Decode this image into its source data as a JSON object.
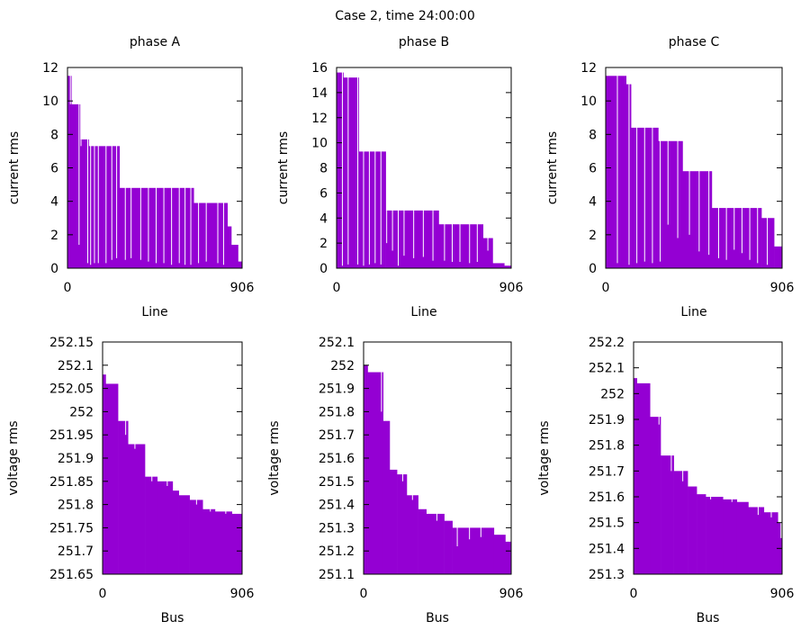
{
  "figure": {
    "title": "Case 2, time 24:00:00"
  },
  "colors": {
    "bar": "#9400d3",
    "frame": "#000000",
    "background": "#ffffff"
  },
  "chart_data": [
    {
      "type": "bar",
      "title": "phase A",
      "xlabel": "Line",
      "ylabel": "current rms",
      "xlim": [
        0,
        906
      ],
      "xticks": [
        "0",
        "906"
      ],
      "ylim": [
        0,
        12
      ],
      "yticks": [
        "0",
        "2",
        "4",
        "6",
        "8",
        "10",
        "12"
      ],
      "steps": [
        [
          0,
          11.5
        ],
        [
          20,
          9.8
        ],
        [
          65,
          7.7
        ],
        [
          110,
          7.3
        ],
        [
          270,
          4.8
        ],
        [
          655,
          3.9
        ],
        [
          830,
          2.5
        ],
        [
          850,
          1.4
        ],
        [
          885,
          0.4
        ]
      ],
      "dips": [
        [
          15,
          9.8
        ],
        [
          60,
          1.4
        ],
        [
          70,
          7.3
        ],
        [
          105,
          0.3
        ],
        [
          120,
          0.2
        ],
        [
          140,
          0.3
        ],
        [
          160,
          0.3
        ],
        [
          200,
          0.3
        ],
        [
          230,
          0.5
        ],
        [
          255,
          0.6
        ],
        [
          300,
          0.5
        ],
        [
          330,
          0.6
        ],
        [
          380,
          0.5
        ],
        [
          420,
          0.4
        ],
        [
          460,
          0.3
        ],
        [
          500,
          0.3
        ],
        [
          540,
          0.2
        ],
        [
          580,
          0.3
        ],
        [
          610,
          0.2
        ],
        [
          640,
          0.2
        ],
        [
          680,
          0.3
        ],
        [
          720,
          0.4
        ],
        [
          780,
          0.3
        ],
        [
          810,
          0.2
        ]
      ],
      "grid": false
    },
    {
      "type": "bar",
      "title": "phase B",
      "xlabel": "Line",
      "ylabel": "current rms",
      "xlim": [
        0,
        906
      ],
      "xticks": [
        "0",
        "906"
      ],
      "ylim": [
        0,
        16
      ],
      "yticks": [
        "0",
        "2",
        "4",
        "6",
        "8",
        "10",
        "12",
        "14",
        "16"
      ],
      "steps": [
        [
          0,
          15.6
        ],
        [
          35,
          15.2
        ],
        [
          115,
          9.3
        ],
        [
          255,
          4.6
        ],
        [
          530,
          3.5
        ],
        [
          760,
          2.4
        ],
        [
          810,
          0.4
        ],
        [
          870,
          0.2
        ]
      ],
      "dips": [
        [
          30,
          0.2
        ],
        [
          60,
          0.3
        ],
        [
          110,
          0.3
        ],
        [
          140,
          0.2
        ],
        [
          170,
          0.3
        ],
        [
          200,
          0.4
        ],
        [
          230,
          0.3
        ],
        [
          260,
          2.0
        ],
        [
          290,
          1.4
        ],
        [
          320,
          0.2
        ],
        [
          350,
          1.0
        ],
        [
          400,
          0.8
        ],
        [
          450,
          0.9
        ],
        [
          500,
          0.6
        ],
        [
          560,
          0.6
        ],
        [
          600,
          0.5
        ],
        [
          640,
          0.5
        ],
        [
          690,
          0.4
        ],
        [
          730,
          0.5
        ],
        [
          785,
          1.4
        ]
      ],
      "grid": false
    },
    {
      "type": "bar",
      "title": "phase C",
      "xlabel": "Line",
      "ylabel": "current rms",
      "xlim": [
        0,
        906
      ],
      "xticks": [
        "0",
        "906"
      ],
      "ylim": [
        0,
        12
      ],
      "yticks": [
        "0",
        "2",
        "4",
        "6",
        "8",
        "10",
        "12"
      ],
      "steps": [
        [
          0,
          11.5
        ],
        [
          105,
          11.0
        ],
        [
          130,
          8.4
        ],
        [
          270,
          7.6
        ],
        [
          395,
          5.8
        ],
        [
          545,
          3.6
        ],
        [
          800,
          3.0
        ],
        [
          865,
          1.3
        ]
      ],
      "dips": [
        [
          60,
          0.3
        ],
        [
          120,
          0.2
        ],
        [
          160,
          0.3
        ],
        [
          200,
          0.4
        ],
        [
          240,
          0.3
        ],
        [
          280,
          0.4
        ],
        [
          320,
          2.6
        ],
        [
          370,
          1.8
        ],
        [
          430,
          2.0
        ],
        [
          480,
          1.0
        ],
        [
          530,
          0.8
        ],
        [
          580,
          0.6
        ],
        [
          620,
          0.5
        ],
        [
          660,
          1.1
        ],
        [
          700,
          0.9
        ],
        [
          740,
          0.5
        ],
        [
          780,
          0.3
        ],
        [
          830,
          0.2
        ]
      ],
      "grid": false
    },
    {
      "type": "bar",
      "title": "",
      "xlabel": "Bus",
      "ylabel": "voltage rms",
      "xlim": [
        0,
        906
      ],
      "xticks": [
        "0",
        "906"
      ],
      "ylim": [
        251.65,
        252.15
      ],
      "yticks": [
        "251.65",
        "251.7",
        "251.75",
        "251.8",
        "251.85",
        "251.9",
        "251.95",
        "252",
        "252.05",
        "252.1",
        "252.15"
      ],
      "steps": [
        [
          0,
          252.08
        ],
        [
          20,
          252.06
        ],
        [
          100,
          251.98
        ],
        [
          165,
          251.93
        ],
        [
          275,
          251.86
        ],
        [
          355,
          251.85
        ],
        [
          455,
          251.83
        ],
        [
          495,
          251.82
        ],
        [
          565,
          251.81
        ],
        [
          650,
          251.79
        ],
        [
          730,
          251.785
        ],
        [
          840,
          251.78
        ]
      ],
      "dips": [
        [
          150,
          251.95
        ],
        [
          210,
          251.92
        ],
        [
          320,
          251.85
        ],
        [
          420,
          251.84
        ],
        [
          610,
          251.8
        ],
        [
          700,
          251.785
        ],
        [
          800,
          251.78
        ]
      ],
      "grid": false
    },
    {
      "type": "bar",
      "title": "",
      "xlabel": "Bus",
      "ylabel": "voltage rms",
      "xlim": [
        0,
        906
      ],
      "xticks": [
        "0",
        "906"
      ],
      "ylim": [
        251.1,
        252.1
      ],
      "yticks": [
        "251.1",
        "251.2",
        "251.3",
        "251.4",
        "251.5",
        "251.6",
        "251.7",
        "251.8",
        "251.9",
        "252",
        "252.1"
      ],
      "steps": [
        [
          0,
          252.0
        ],
        [
          25,
          251.97
        ],
        [
          120,
          251.76
        ],
        [
          160,
          251.55
        ],
        [
          205,
          251.53
        ],
        [
          265,
          251.44
        ],
        [
          335,
          251.38
        ],
        [
          385,
          251.36
        ],
        [
          495,
          251.33
        ],
        [
          545,
          251.3
        ],
        [
          800,
          251.27
        ],
        [
          870,
          251.24
        ]
      ],
      "dips": [
        [
          110,
          251.8
        ],
        [
          240,
          251.5
        ],
        [
          300,
          251.42
        ],
        [
          450,
          251.33
        ],
        [
          575,
          251.22
        ],
        [
          650,
          251.25
        ],
        [
          720,
          251.26
        ]
      ],
      "grid": false
    },
    {
      "type": "bar",
      "title": "",
      "xlabel": "Bus",
      "ylabel": "voltage rms",
      "xlim": [
        0,
        906
      ],
      "xticks": [
        "0",
        "906"
      ],
      "ylim": [
        251.3,
        252.2
      ],
      "yticks": [
        "251.3",
        "251.4",
        "251.5",
        "251.6",
        "251.7",
        "251.8",
        "251.9",
        "252",
        "252.1",
        "252.2"
      ],
      "steps": [
        [
          0,
          252.06
        ],
        [
          20,
          252.04
        ],
        [
          100,
          251.91
        ],
        [
          165,
          251.76
        ],
        [
          245,
          251.7
        ],
        [
          330,
          251.64
        ],
        [
          385,
          251.61
        ],
        [
          440,
          251.6
        ],
        [
          545,
          251.59
        ],
        [
          630,
          251.58
        ],
        [
          700,
          251.56
        ],
        [
          795,
          251.54
        ],
        [
          880,
          251.5
        ],
        [
          895,
          251.44
        ]
      ],
      "dips": [
        [
          155,
          251.88
        ],
        [
          230,
          251.7
        ],
        [
          300,
          251.66
        ],
        [
          470,
          251.59
        ],
        [
          600,
          251.58
        ],
        [
          760,
          251.53
        ],
        [
          840,
          251.52
        ]
      ],
      "grid": false
    }
  ]
}
